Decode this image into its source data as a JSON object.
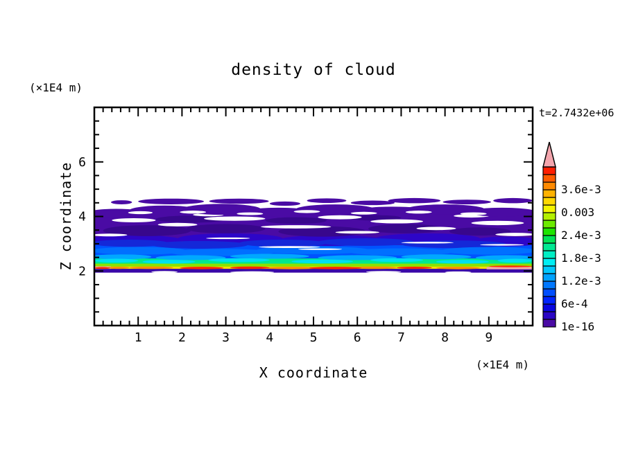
{
  "meta": {
    "time_label": "t=2.7432e+06"
  },
  "axes": {
    "x": {
      "label": "X coordinate",
      "unit": "(×1E4 m)",
      "min": 0,
      "max": 10,
      "major_ticks": [
        1,
        2,
        3,
        4,
        5,
        6,
        7,
        8,
        9
      ],
      "tick_labels": [
        "1",
        "2",
        "3",
        "4",
        "5",
        "6",
        "7",
        "8",
        "9"
      ],
      "minor_step": 0.2
    },
    "z": {
      "label": "Z coordinate",
      "unit": "(×1E4 m)",
      "min": 0,
      "max": 8,
      "major_ticks": [
        2,
        4,
        6
      ],
      "tick_labels": [
        "2",
        "4",
        "6"
      ],
      "minor_step": 0.5
    }
  },
  "chart_data": {
    "type": "filled_contour",
    "title": "density of cloud",
    "xlabel": "X coordinate",
    "x_unit": "(×1E4 m)",
    "xlim": [
      0,
      10
    ],
    "zlabel": "Z coordinate",
    "z_unit": "(×1E4 m)",
    "zlim": [
      0,
      8
    ],
    "time_annotation": "t=2.7432e+06",
    "grid": false,
    "notes": "Horizontally stratified cloud layer between z≈2.0 and z≈4.7 (×1E4 m). Density is highest (red/orange, ~3e-3 to >4.2e-3, locally pink overflow) in a thin sheet just above z=2, decreasing upward through green, cyan and blue bands to near-zero (indigo, 1e-16 level) at the ragged cloud top; white regions contain no cloud.",
    "colorbar": {
      "levels": [
        1e-16,
        0.0002,
        0.0004,
        0.0006,
        0.0008,
        0.001,
        0.0012,
        0.0014,
        0.0016,
        0.0018,
        0.002,
        0.0022,
        0.0024,
        0.0026,
        0.0028,
        0.003,
        0.0032,
        0.0034,
        0.0036,
        0.0038,
        0.004,
        0.0042
      ],
      "colors_bottom_to_top": [
        "#4a0ba4",
        "#2a06c4",
        "#0806e0",
        "#0024ff",
        "#004eff",
        "#0078ff",
        "#00a2ff",
        "#00c8ff",
        "#00eef4",
        "#00eec4",
        "#00e992",
        "#00e455",
        "#1ee400",
        "#6cea00",
        "#b4f000",
        "#f4f400",
        "#ffd800",
        "#ffb200",
        "#ff8a00",
        "#ff5c00",
        "#ff1e00"
      ],
      "overflow_color": "#f3a5ad",
      "labels": [
        {
          "text": "1e-16",
          "level_index": 0
        },
        {
          "text": "6e-4",
          "level_index": 3
        },
        {
          "text": "1.2e-3",
          "level_index": 6
        },
        {
          "text": "1.8e-3",
          "level_index": 9
        },
        {
          "text": "2.4e-3",
          "level_index": 12
        },
        {
          "text": "0.003",
          "level_index": 15
        },
        {
          "text": "3.6e-3",
          "level_index": 18
        }
      ]
    },
    "shapes": {
      "bands": [
        [
          0,
          2.9,
          10,
          4.18,
          "#4a0ba4"
        ],
        [
          0,
          2.42,
          10,
          2.95,
          "#0053ff"
        ],
        [
          0,
          2.24,
          10,
          2.46,
          "#00e88e"
        ],
        [
          0,
          2.12,
          10,
          2.27,
          "#8ee000"
        ],
        [
          0,
          2.06,
          10,
          2.16,
          "#ffdf00"
        ],
        [
          0,
          1.94,
          10,
          2.08,
          "#3a08a8"
        ],
        [
          0,
          2.08,
          0.38,
          2.17,
          "#f0a4a4"
        ],
        [
          8.95,
          2.06,
          10,
          2.15,
          "#f0a4a4"
        ]
      ],
      "ellipses": [
        [
          0.9,
          3.12,
          1.1,
          0.2,
          "#2d06c8"
        ],
        [
          3.1,
          3.18,
          1.2,
          0.2,
          "#2d06c8"
        ],
        [
          5.4,
          3.12,
          1.2,
          0.2,
          "#2d06c8"
        ],
        [
          7.6,
          3.18,
          1.2,
          0.2,
          "#2d06c8"
        ],
        [
          9.4,
          3.08,
          0.8,
          0.18,
          "#2d06c8"
        ],
        [
          1.2,
          3.48,
          1.0,
          0.2,
          "#38078c"
        ],
        [
          3.0,
          3.55,
          0.9,
          0.17,
          "#38078c"
        ],
        [
          5.2,
          3.45,
          1.0,
          0.19,
          "#38078c"
        ],
        [
          7.1,
          3.55,
          0.85,
          0.17,
          "#38078c"
        ],
        [
          8.8,
          3.45,
          0.7,
          0.15,
          "#38078c"
        ],
        [
          2.2,
          3.9,
          0.8,
          0.13,
          "#38078c"
        ],
        [
          4.6,
          3.85,
          0.7,
          0.12,
          "#38078c"
        ],
        [
          6.4,
          3.95,
          0.6,
          0.1,
          "#38078c"
        ],
        [
          0.8,
          3.02,
          0.9,
          0.13,
          "#1428d8"
        ],
        [
          2.4,
          2.96,
          1.1,
          0.14,
          "#1428d8"
        ],
        [
          4.3,
          3.02,
          1.0,
          0.13,
          "#1428d8"
        ],
        [
          6.2,
          3.06,
          1.1,
          0.14,
          "#1428d8"
        ],
        [
          8.2,
          2.98,
          1.2,
          0.14,
          "#1428d8"
        ],
        [
          1.0,
          2.74,
          1.1,
          0.14,
          "#0070ff"
        ],
        [
          2.9,
          2.68,
          1.2,
          0.13,
          "#0070ff"
        ],
        [
          5.0,
          2.76,
          1.3,
          0.14,
          "#0070ff"
        ],
        [
          7.0,
          2.7,
          1.2,
          0.13,
          "#0070ff"
        ],
        [
          9.0,
          2.74,
          1.1,
          0.14,
          "#0070ff"
        ],
        [
          0.6,
          2.52,
          0.7,
          0.09,
          "#00a8ff"
        ],
        [
          2.2,
          2.49,
          0.8,
          0.09,
          "#00a8ff"
        ],
        [
          4.0,
          2.54,
          0.9,
          0.09,
          "#00a8ff"
        ],
        [
          6.0,
          2.49,
          0.9,
          0.09,
          "#00a8ff"
        ],
        [
          7.8,
          2.52,
          0.8,
          0.09,
          "#00a8ff"
        ],
        [
          9.4,
          2.49,
          0.7,
          0.09,
          "#00a8ff"
        ],
        [
          0.5,
          2.38,
          0.5,
          0.07,
          "#00e0f0"
        ],
        [
          1.7,
          2.34,
          0.6,
          0.07,
          "#00e0f0"
        ],
        [
          3.3,
          2.4,
          0.7,
          0.07,
          "#00e0f0"
        ],
        [
          5.2,
          2.35,
          0.7,
          0.07,
          "#00e0f0"
        ],
        [
          6.9,
          2.4,
          0.6,
          0.07,
          "#00e0f0"
        ],
        [
          8.4,
          2.34,
          0.6,
          0.07,
          "#00e0f0"
        ],
        [
          9.6,
          2.38,
          0.4,
          0.07,
          "#00e0f0"
        ],
        [
          1.3,
          2.12,
          0.5,
          0.045,
          "#ff9000"
        ],
        [
          4.5,
          2.11,
          0.6,
          0.045,
          "#ff9000"
        ],
        [
          6.4,
          2.12,
          0.5,
          0.045,
          "#ff9000"
        ],
        [
          8.3,
          2.11,
          0.5,
          0.045,
          "#ff9000"
        ],
        [
          0.55,
          2.12,
          0.25,
          0.04,
          "#ff9000"
        ],
        [
          2.45,
          2.11,
          0.5,
          0.045,
          "#ff2800"
        ],
        [
          3.55,
          2.12,
          0.45,
          0.045,
          "#ff2800"
        ],
        [
          5.5,
          2.11,
          0.6,
          0.045,
          "#ff2800"
        ],
        [
          7.3,
          2.12,
          0.4,
          0.04,
          "#ff2800"
        ],
        [
          0.18,
          2.11,
          0.18,
          0.035,
          "#ff2800"
        ],
        [
          9.5,
          2.17,
          0.5,
          0.03,
          "#ff2800"
        ],
        [
          0.9,
          3.86,
          0.5,
          0.075,
          "#ffffff"
        ],
        [
          1.9,
          3.7,
          0.45,
          0.065,
          "#ffffff"
        ],
        [
          3.2,
          3.92,
          0.7,
          0.08,
          "#ffffff"
        ],
        [
          4.6,
          3.62,
          0.8,
          0.06,
          "#ffffff"
        ],
        [
          5.6,
          3.97,
          0.5,
          0.075,
          "#ffffff"
        ],
        [
          6.9,
          3.82,
          0.6,
          0.075,
          "#ffffff"
        ],
        [
          7.8,
          3.56,
          0.45,
          0.06,
          "#ffffff"
        ],
        [
          9.2,
          3.76,
          0.6,
          0.08,
          "#ffffff"
        ],
        [
          8.6,
          4.02,
          0.4,
          0.06,
          "#ffffff"
        ],
        [
          2.6,
          4.06,
          0.35,
          0.055,
          "#ffffff"
        ],
        [
          0.35,
          3.32,
          0.4,
          0.05,
          "#ffffff"
        ],
        [
          6.0,
          3.42,
          0.5,
          0.05,
          "#ffffff"
        ],
        [
          9.6,
          3.34,
          0.45,
          0.06,
          "#ffffff"
        ],
        [
          4.45,
          2.88,
          0.7,
          0.035,
          "#ffffff"
        ],
        [
          5.15,
          2.8,
          0.5,
          0.03,
          "#ffffff"
        ],
        [
          3.05,
          3.2,
          0.5,
          0.03,
          "#ffffff"
        ],
        [
          7.6,
          3.04,
          0.6,
          0.032,
          "#ffffff"
        ],
        [
          9.3,
          2.96,
          0.5,
          0.03,
          "#ffffff"
        ],
        [
          1.6,
          1.965,
          0.3,
          0.035,
          "#ffffff"
        ],
        [
          3.6,
          1.955,
          0.5,
          0.035,
          "#ffffff"
        ],
        [
          6.6,
          1.965,
          0.4,
          0.035,
          "#ffffff"
        ],
        [
          8.3,
          1.955,
          0.3,
          0.03,
          "#ffffff"
        ],
        [
          0.5,
          4.12,
          0.7,
          0.16,
          "#4a0ba4"
        ],
        [
          1.6,
          4.22,
          0.8,
          0.18,
          "#4a0ba4"
        ],
        [
          2.9,
          4.26,
          0.9,
          0.2,
          "#4a0ba4"
        ],
        [
          4.2,
          4.16,
          0.8,
          0.16,
          "#4a0ba4"
        ],
        [
          5.5,
          4.26,
          0.9,
          0.18,
          "#4a0ba4"
        ],
        [
          6.8,
          4.2,
          0.8,
          0.16,
          "#4a0ba4"
        ],
        [
          8.0,
          4.26,
          0.9,
          0.18,
          "#4a0ba4"
        ],
        [
          9.3,
          4.16,
          0.8,
          0.16,
          "#4a0ba4"
        ],
        [
          1.05,
          4.14,
          0.28,
          0.055,
          "#ffffff"
        ],
        [
          2.25,
          4.16,
          0.3,
          0.055,
          "#ffffff"
        ],
        [
          3.55,
          4.1,
          0.3,
          0.05,
          "#ffffff"
        ],
        [
          4.85,
          4.18,
          0.3,
          0.055,
          "#ffffff"
        ],
        [
          6.15,
          4.12,
          0.3,
          0.05,
          "#ffffff"
        ],
        [
          7.4,
          4.16,
          0.3,
          0.055,
          "#ffffff"
        ],
        [
          8.65,
          4.1,
          0.3,
          0.05,
          "#ffffff"
        ],
        [
          0.62,
          4.52,
          0.24,
          0.075,
          "#4a0ba4"
        ],
        [
          1.75,
          4.55,
          0.75,
          0.105,
          "#4a0ba4"
        ],
        [
          3.3,
          4.56,
          0.68,
          0.095,
          "#4a0ba4"
        ],
        [
          4.35,
          4.47,
          0.35,
          0.08,
          "#4a0ba4"
        ],
        [
          5.3,
          4.58,
          0.45,
          0.085,
          "#4a0ba4"
        ],
        [
          6.35,
          4.5,
          0.5,
          0.085,
          "#4a0ba4"
        ],
        [
          7.3,
          4.58,
          0.6,
          0.095,
          "#4a0ba4"
        ],
        [
          8.5,
          4.53,
          0.55,
          0.085,
          "#4a0ba4"
        ],
        [
          9.55,
          4.58,
          0.45,
          0.095,
          "#4a0ba4"
        ]
      ]
    }
  }
}
